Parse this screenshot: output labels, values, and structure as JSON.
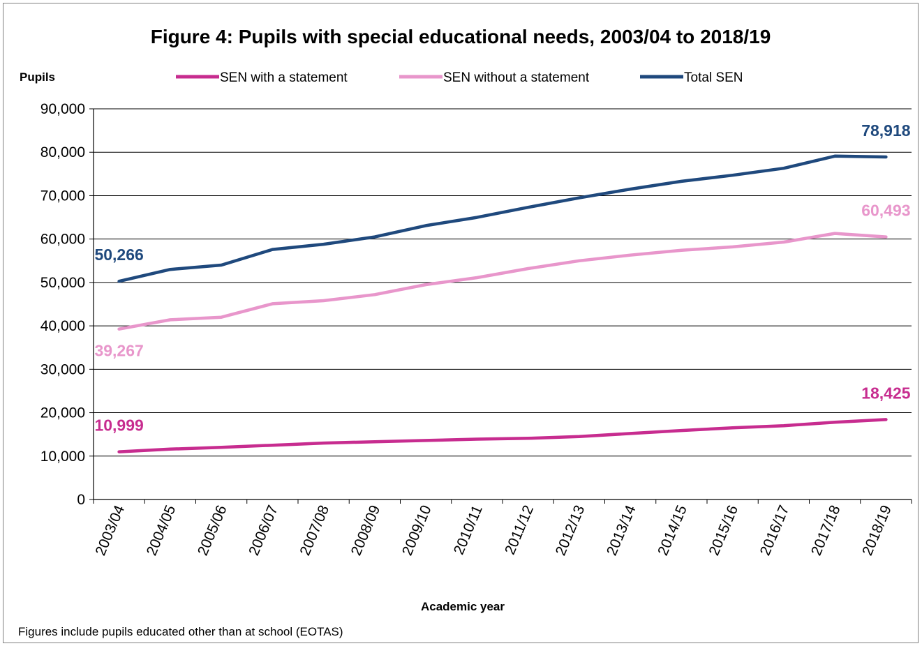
{
  "chart_data": {
    "type": "line",
    "title": "Figure 4: Pupils with special educational needs, 2003/04 to 2018/19",
    "ylabel": "Pupils",
    "xlabel": "Academic year",
    "footnote": "Figures include pupils educated other than at school (EOTAS)",
    "ylim": [
      0,
      90000
    ],
    "ytick_values": [
      0,
      10000,
      20000,
      30000,
      40000,
      50000,
      60000,
      70000,
      80000,
      90000
    ],
    "ytick_labels": [
      "0",
      "10,000",
      "20,000",
      "30,000",
      "40,000",
      "50,000",
      "60,000",
      "70,000",
      "80,000",
      "90,000"
    ],
    "grid": true,
    "legend_position": "top",
    "categories": [
      "2003/04",
      "2004/05",
      "2005/06",
      "2006/07",
      "2007/08",
      "2008/09",
      "2009/10",
      "2010/11",
      "2011/12",
      "2012/13",
      "2013/14",
      "2014/15",
      "2015/16",
      "2016/17",
      "2017/18",
      "2018/19"
    ],
    "series": [
      {
        "name": "SEN with a statement",
        "color": "#c72c8f",
        "values": [
          10999,
          11600,
          12000,
          12500,
          13000,
          13300,
          13600,
          13900,
          14100,
          14500,
          15200,
          15900,
          16500,
          17000,
          17800,
          18425
        ],
        "labels": [
          {
            "index": 0,
            "text": "10,999",
            "position": "above"
          },
          {
            "index": 15,
            "text": "18,425",
            "position": "above"
          }
        ]
      },
      {
        "name": "SEN without a statement",
        "color": "#e896cb",
        "values": [
          39267,
          41400,
          42000,
          45100,
          45800,
          47200,
          49500,
          51100,
          53200,
          55000,
          56300,
          57400,
          58200,
          59300,
          61300,
          60493
        ],
        "labels": [
          {
            "index": 0,
            "text": "39,267",
            "position": "below"
          },
          {
            "index": 15,
            "text": "60,493",
            "position": "above"
          }
        ]
      },
      {
        "name": "Total SEN",
        "color": "#1f497d",
        "values": [
          50266,
          53000,
          54000,
          57600,
          58800,
          60500,
          63100,
          65000,
          67300,
          69500,
          71500,
          73300,
          74700,
          76300,
          79100,
          78918
        ],
        "labels": [
          {
            "index": 0,
            "text": "50,266",
            "position": "above"
          },
          {
            "index": 15,
            "text": "78,918",
            "position": "above"
          }
        ]
      }
    ]
  }
}
